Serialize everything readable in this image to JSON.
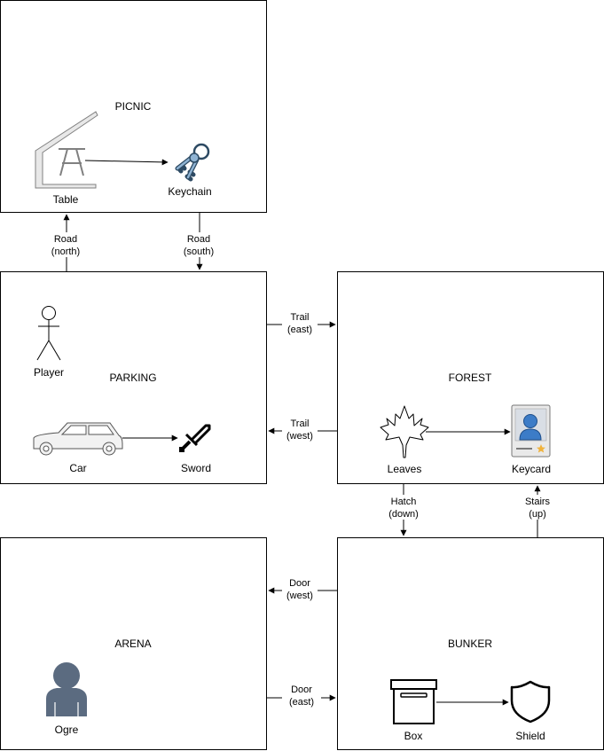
{
  "rooms": {
    "picnic": "PICNIC",
    "parking": "PARKING",
    "forest": "FOREST",
    "arena": "ARENA",
    "bunker": "BUNKER"
  },
  "items": {
    "table": "Table",
    "keychain": "Keychain",
    "player": "Player",
    "car": "Car",
    "sword": "Sword",
    "leaves": "Leaves",
    "keycard": "Keycard",
    "ogre": "Ogre",
    "box": "Box",
    "shield": "Shield"
  },
  "edges": {
    "road_north": [
      "Road",
      "(north)"
    ],
    "road_south": [
      "Road",
      "(south)"
    ],
    "trail_east": [
      "Trail",
      "(east)"
    ],
    "trail_west": [
      "Trail",
      "(west)"
    ],
    "hatch_down": [
      "Hatch",
      "(down)"
    ],
    "stairs_up": [
      "Stairs",
      "(up)"
    ],
    "door_west": [
      "Door",
      "(west)"
    ],
    "door_east": [
      "Door",
      "(east)"
    ]
  },
  "colors": {
    "line": "#000000",
    "icon_gray": "#e6e6e6",
    "icon_outline": "#7f7f7f",
    "key_blue": "#6a8fb0",
    "ogre_fill": "#5b6b80",
    "keycard_blue": "#3c7cc7"
  }
}
